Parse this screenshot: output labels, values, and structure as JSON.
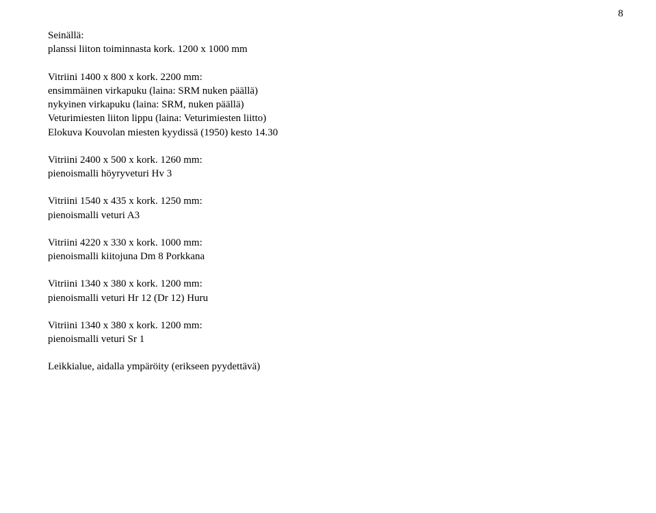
{
  "page_number": "8",
  "blocks": [
    {
      "lines": [
        "Seinällä:",
        "planssi liiton toiminnasta kork. 1200 x 1000 mm"
      ]
    },
    {
      "lines": [
        "Vitriini 1400 x 800 x kork. 2200 mm:",
        "ensimmäinen virkapuku (laina: SRM nuken päällä)",
        "nykyinen virkapuku (laina: SRM, nuken päällä)",
        "Veturimiesten liiton lippu (laina: Veturimiesten liitto)",
        "Elokuva Kouvolan miesten kyydissä (1950) kesto 14.30"
      ]
    },
    {
      "lines": [
        "Vitriini 2400 x 500 x kork. 1260 mm:",
        "pienoismalli höyryveturi Hv 3"
      ]
    },
    {
      "lines": [
        "Vitriini 1540 x 435 x  kork. 1250 mm:",
        "pienoismalli veturi A3"
      ]
    },
    {
      "lines": [
        "Vitriini 4220 x 330 x kork. 1000 mm:",
        "pienoismalli kiitojuna Dm 8 Porkkana"
      ]
    },
    {
      "lines": [
        "Vitriini 1340 x 380 x  kork. 1200 mm:",
        "pienoismalli veturi Hr 12 (Dr 12) Huru"
      ]
    },
    {
      "lines": [
        "Vitriini 1340 x 380 x  kork. 1200 mm:",
        "pienoismalli veturi Sr 1"
      ]
    },
    {
      "lines": [
        "Leikkialue, aidalla ympäröity (erikseen pyydettävä)"
      ]
    }
  ]
}
